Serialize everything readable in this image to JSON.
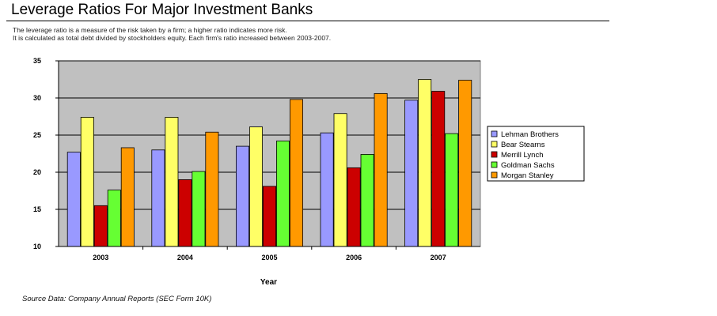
{
  "header": {
    "title": "Leverage Ratios For Major Investment Banks",
    "desc_line1": "The leverage ratio is a measure of the risk taken by a firm; a higher ratio indicates more risk.",
    "desc_line2": "It is calculated as total debt divided by stockholders equity. Each firm's ratio increased between 2003-2007.",
    "source": "Source Data:  Company Annual Reports (SEC Form 10K)"
  },
  "chart_data": {
    "type": "bar",
    "title": "Leverage Ratios For Major Investment Banks",
    "xlabel": "Year",
    "ylabel": "",
    "categories": [
      "2003",
      "2004",
      "2005",
      "2006",
      "2007"
    ],
    "ylim": [
      10,
      35
    ],
    "yticks": [
      10,
      15,
      20,
      25,
      30,
      35
    ],
    "grid": true,
    "legend_position": "right",
    "plot_background": "#c0c0c0",
    "series": [
      {
        "name": "Lehman Brothers",
        "color": "#9999ff",
        "values": [
          22.7,
          23.0,
          23.5,
          25.3,
          29.7
        ]
      },
      {
        "name": "Bear Stearns",
        "color": "#ffff66",
        "values": [
          27.4,
          27.4,
          26.1,
          27.9,
          32.5
        ]
      },
      {
        "name": "Merrill Lynch",
        "color": "#cc0000",
        "values": [
          15.5,
          19.0,
          18.1,
          20.6,
          30.9
        ]
      },
      {
        "name": "Goldman Sachs",
        "color": "#66ff33",
        "values": [
          17.6,
          20.1,
          24.2,
          22.4,
          25.2
        ]
      },
      {
        "name": "Morgan Stanley",
        "color": "#ff9900",
        "values": [
          23.3,
          25.4,
          29.8,
          30.6,
          32.4
        ]
      }
    ]
  }
}
